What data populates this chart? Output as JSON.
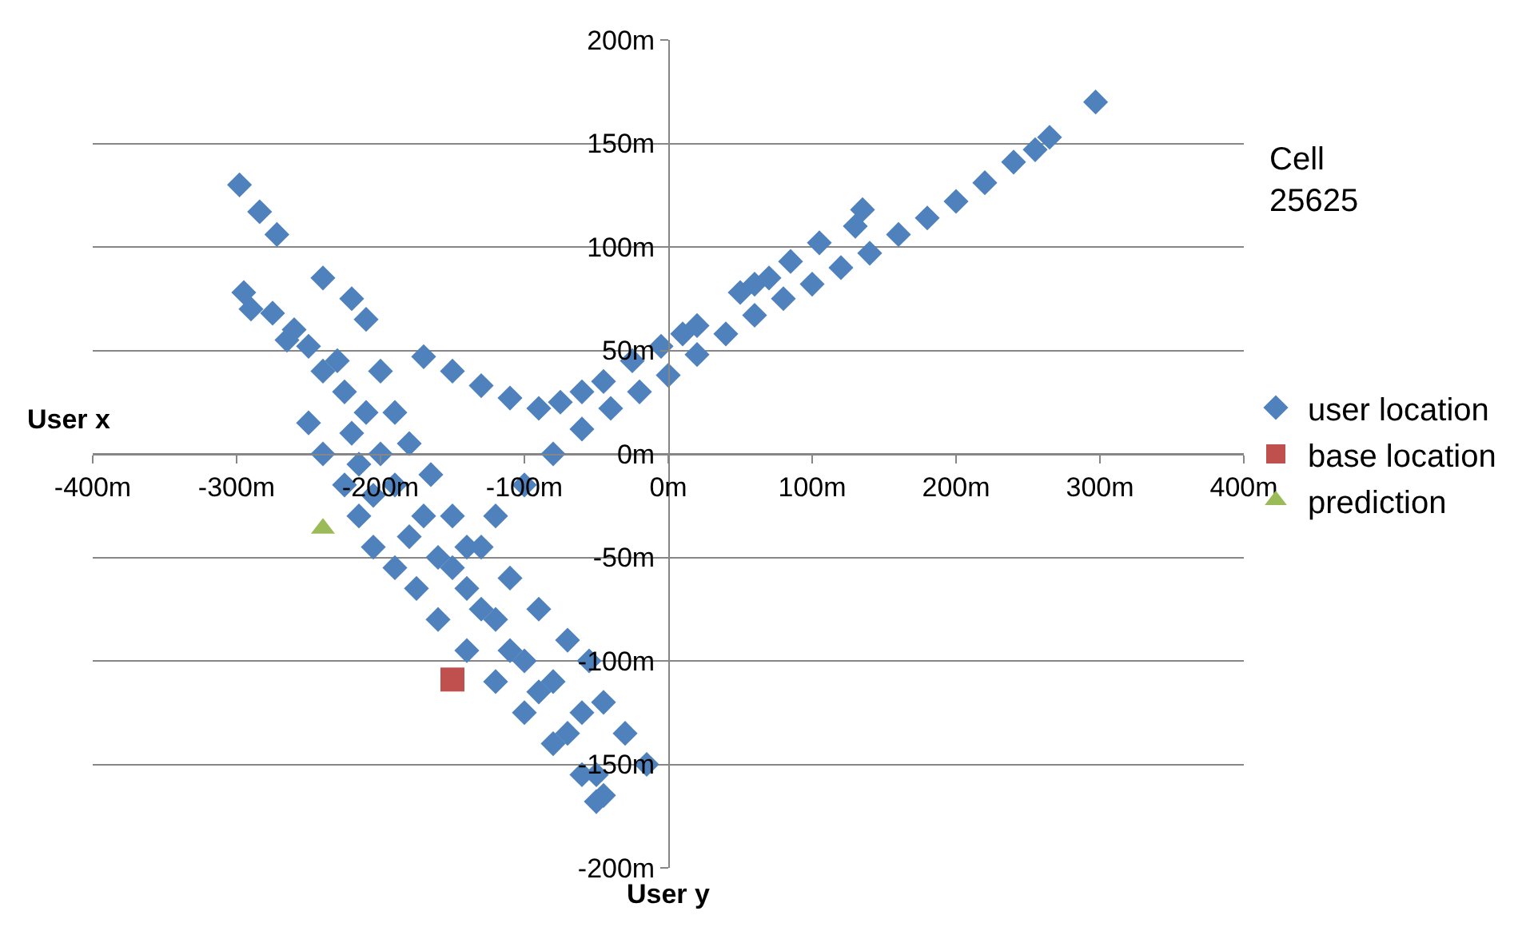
{
  "chart_data": {
    "type": "scatter",
    "title": "Cell 25625",
    "xlabel": "User y",
    "ylabel": "User x",
    "xlim": [
      -400,
      400
    ],
    "xticks": [
      {
        "value": -400,
        "label": "-400m"
      },
      {
        "value": -300,
        "label": "-300m"
      },
      {
        "value": -200,
        "label": "-200m"
      },
      {
        "value": -100,
        "label": "-100m"
      },
      {
        "value": 0,
        "label": "0m"
      },
      {
        "value": 100,
        "label": "100m"
      },
      {
        "value": 200,
        "label": "200m"
      },
      {
        "value": 300,
        "label": "300m"
      },
      {
        "value": 400,
        "label": "400m"
      }
    ],
    "ylim": [
      -200,
      200
    ],
    "yticks": [
      {
        "value": -200,
        "label": "-200m"
      },
      {
        "value": -150,
        "label": "-150m"
      },
      {
        "value": -100,
        "label": "-100m"
      },
      {
        "value": -50,
        "label": "-50m"
      },
      {
        "value": 0,
        "label": "0m"
      },
      {
        "value": 50,
        "label": "50m"
      },
      {
        "value": 100,
        "label": "100m"
      },
      {
        "value": 150,
        "label": "150m"
      },
      {
        "value": 200,
        "label": "200m"
      }
    ],
    "grid": "y",
    "legend": "right",
    "series": [
      {
        "name": "user location",
        "color": "#4f81bd",
        "marker": "diamond",
        "x": [
          -140,
          -120,
          -100,
          -80,
          -60,
          -40,
          -20,
          0,
          20,
          40,
          60,
          80,
          100,
          120,
          140,
          160,
          180,
          200,
          220,
          240,
          255,
          265,
          297,
          -170,
          -150,
          -130,
          -110,
          -90,
          -75,
          -60,
          -45,
          -25,
          -5,
          10,
          20,
          50,
          60,
          70,
          85,
          105,
          130,
          135,
          -298,
          -284,
          -272,
          -295,
          -260,
          -230,
          -210,
          -200,
          -190,
          -170,
          -150,
          -130,
          -110,
          -90,
          -70,
          -50,
          -45,
          -240,
          -220,
          -210,
          -200,
          -190,
          -180,
          -165,
          -150,
          -130,
          -110,
          -90,
          -70,
          -55,
          -45,
          -30,
          -15,
          -250,
          -240,
          -225,
          -215,
          -205,
          -190,
          -175,
          -160,
          -140,
          -120,
          -100,
          -80,
          -60,
          -50,
          -290,
          -275,
          -265,
          -250,
          -240,
          -225,
          -220,
          -215,
          -205,
          -180,
          -160,
          -140,
          -120,
          -100,
          -80,
          -60
        ],
        "values": [
          -45,
          -30,
          -15,
          0,
          12,
          22,
          30,
          38,
          48,
          58,
          67,
          75,
          82,
          90,
          97,
          106,
          114,
          122,
          131,
          141,
          147,
          153,
          170,
          47,
          40,
          33,
          27,
          22,
          25,
          30,
          35,
          45,
          52,
          58,
          62,
          78,
          82,
          85,
          93,
          102,
          110,
          118,
          130,
          117,
          106,
          78,
          60,
          45,
          20,
          0,
          -15,
          -30,
          -55,
          -75,
          -95,
          -115,
          -135,
          -155,
          -165,
          85,
          75,
          65,
          40,
          20,
          5,
          -10,
          -30,
          -45,
          -60,
          -75,
          -90,
          -100,
          -120,
          -135,
          -150,
          15,
          0,
          -15,
          -30,
          -45,
          -55,
          -65,
          -80,
          -95,
          -110,
          -125,
          -140,
          -155,
          -168,
          70,
          68,
          55,
          52,
          40,
          30,
          10,
          -5,
          -20,
          -40,
          -50,
          -65,
          -80,
          -100,
          -110,
          -125
        ]
      },
      {
        "name": "base location",
        "color": "#c0504d",
        "marker": "square",
        "x": [
          -150
        ],
        "values": [
          -109
        ]
      },
      {
        "name": "prediction",
        "color": "#9bbb59",
        "marker": "triangle",
        "x": [
          -240
        ],
        "values": [
          -36
        ]
      }
    ]
  }
}
